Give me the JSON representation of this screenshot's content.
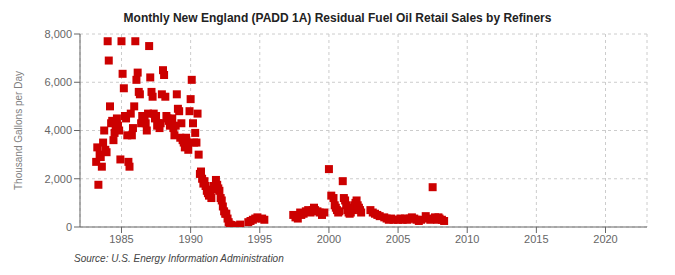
{
  "chart_data": {
    "type": "scatter",
    "title": "Monthly New England (PADD 1A) Residual Fuel Oil Retail Sales by Refiners",
    "ylabel": "Thousand Gallons per Day",
    "annotations": [
      "Source: U.S. Energy Information Administration"
    ],
    "color": "#cc0000",
    "marker": "square",
    "grid": true,
    "xlim": [
      1982.0,
      2023.0
    ],
    "ylim": [
      0,
      8000
    ],
    "xticks": [
      1985,
      1990,
      1995,
      2000,
      2005,
      2010,
      2015,
      2020
    ],
    "yticks": [
      0,
      {
        "value": 2000,
        "label": "2,000"
      },
      {
        "value": 4000,
        "label": "4,000"
      },
      {
        "value": 6000,
        "label": "6,000"
      },
      {
        "value": 8000,
        "label": "8,000"
      }
    ],
    "x": [
      1983.17,
      1983.25,
      1983.33,
      1983.42,
      1983.5,
      1983.58,
      1983.67,
      1983.75,
      1983.83,
      1983.92,
      1984.0,
      1984.08,
      1984.17,
      1984.25,
      1984.33,
      1984.42,
      1984.5,
      1984.58,
      1984.67,
      1984.75,
      1984.83,
      1984.92,
      1985.0,
      1985.08,
      1985.17,
      1985.25,
      1985.33,
      1985.42,
      1985.5,
      1985.58,
      1985.67,
      1985.75,
      1985.83,
      1985.92,
      1986.0,
      1986.08,
      1986.17,
      1986.25,
      1986.33,
      1986.42,
      1986.5,
      1986.58,
      1986.67,
      1986.75,
      1986.83,
      1986.92,
      1987.0,
      1987.08,
      1987.17,
      1987.25,
      1987.33,
      1987.42,
      1987.5,
      1987.58,
      1987.67,
      1987.75,
      1987.83,
      1987.92,
      1988.0,
      1988.08,
      1988.17,
      1988.25,
      1988.33,
      1988.42,
      1988.5,
      1988.58,
      1988.67,
      1988.75,
      1988.83,
      1988.92,
      1989.0,
      1989.08,
      1989.17,
      1989.25,
      1989.33,
      1989.42,
      1989.5,
      1989.58,
      1989.67,
      1989.75,
      1989.83,
      1989.92,
      1990.0,
      1990.08,
      1990.17,
      1990.25,
      1990.33,
      1990.42,
      1990.5,
      1990.58,
      1990.67,
      1990.75,
      1990.83,
      1990.92,
      1991.0,
      1991.08,
      1991.17,
      1991.25,
      1991.33,
      1991.42,
      1991.5,
      1991.58,
      1991.67,
      1991.75,
      1991.83,
      1991.92,
      1992.0,
      1992.08,
      1992.17,
      1992.25,
      1992.33,
      1992.42,
      1992.5,
      1992.58,
      1992.67,
      1992.75,
      1992.83,
      1992.92,
      1993.0,
      1993.08,
      1993.17,
      1993.42,
      1993.58,
      1994.17,
      1994.33,
      1994.5,
      1994.67,
      1994.83,
      1995.17,
      1995.33,
      1997.42,
      1997.58,
      1997.75,
      1997.92,
      1998.0,
      1998.17,
      1998.33,
      1998.5,
      1998.67,
      1998.83,
      1998.92,
      1999.0,
      1999.17,
      1999.33,
      1999.5,
      1999.67,
      2000.0,
      2000.17,
      2000.33,
      2000.42,
      2000.5,
      2000.58,
      2000.67,
      2000.75,
      2001.0,
      2001.08,
      2001.17,
      2001.25,
      2001.33,
      2001.42,
      2001.5,
      2001.58,
      2001.67,
      2001.75,
      2001.83,
      2001.92,
      2002.0,
      2002.08,
      2002.17,
      2002.25,
      2002.33,
      2003.0,
      2003.17,
      2003.33,
      2003.5,
      2003.67,
      2004.0,
      2004.17,
      2004.33,
      2004.5,
      2004.67,
      2005.0,
      2005.17,
      2005.33,
      2005.5,
      2005.67,
      2005.83,
      2006.0,
      2006.17,
      2006.33,
      2006.5,
      2006.67,
      2007.0,
      2007.17,
      2007.33,
      2007.5,
      2007.67,
      2007.83,
      2007.92,
      2008.0,
      2008.17,
      2008.33
    ],
    "values": [
      2700,
      3300,
      1750,
      3000,
      2900,
      2500,
      3500,
      4000,
      3200,
      3100,
      7700,
      6900,
      5000,
      4300,
      4400,
      3600,
      3900,
      4100,
      4500,
      4200,
      4000,
      2800,
      7700,
      6350,
      5750,
      4600,
      4500,
      3800,
      2700,
      2500,
      4700,
      3800,
      4100,
      5000,
      7700,
      6100,
      6400,
      5600,
      5500,
      4300,
      4600,
      4500,
      4600,
      4300,
      4000,
      4700,
      7500,
      6200,
      5600,
      5400,
      4700,
      4500,
      4600,
      4200,
      4300,
      4100,
      4300,
      5500,
      6500,
      6300,
      5400,
      4600,
      4500,
      4400,
      4200,
      4300,
      4500,
      4100,
      3800,
      4200,
      5500,
      4900,
      4800,
      3700,
      4300,
      3600,
      3500,
      3300,
      3700,
      3500,
      3200,
      4800,
      5300,
      6100,
      4300,
      3500,
      3900,
      3500,
      4700,
      3000,
      2200,
      2300,
      2000,
      1800,
      1900,
      1700,
      1500,
      1400,
      1300,
      1350,
      1200,
      1550,
      1700,
      1600,
      1950,
      1750,
      1600,
      1500,
      1200,
      1100,
      850,
      650,
      550,
      550,
      350,
      200,
      100,
      80,
      60,
      30,
      10,
      50,
      100,
      200,
      250,
      300,
      350,
      400,
      350,
      300,
      500,
      400,
      350,
      600,
      500,
      550,
      650,
      700,
      600,
      700,
      800,
      700,
      650,
      600,
      500,
      600,
      2400,
      1300,
      1200,
      900,
      800,
      700,
      600,
      650,
      1900,
      1200,
      1100,
      900,
      700,
      600,
      550,
      600,
      700,
      800,
      900,
      1000,
      1100,
      900,
      800,
      700,
      600,
      700,
      600,
      550,
      500,
      450,
      400,
      350,
      300,
      350,
      300,
      300,
      350,
      300,
      350,
      300,
      350,
      400,
      350,
      300,
      250,
      300,
      450,
      350,
      300,
      1650,
      400,
      300,
      400,
      350,
      300,
      250
    ]
  }
}
